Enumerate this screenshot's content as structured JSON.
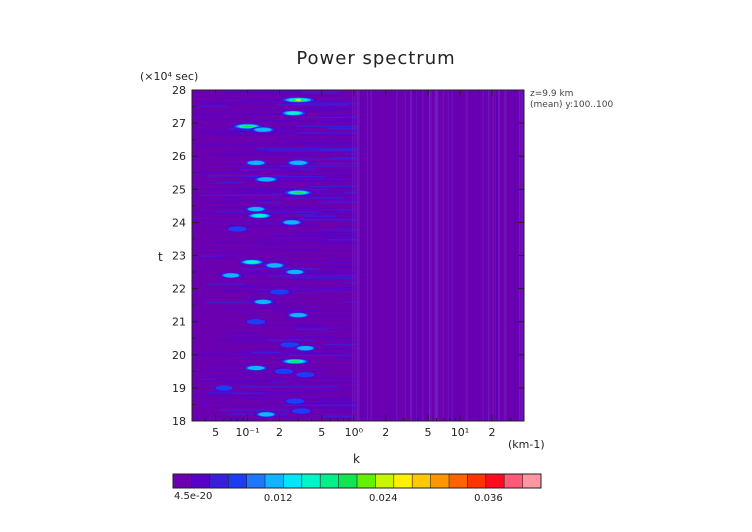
{
  "chart_data": {
    "type": "heatmap",
    "title": "Power spectrum",
    "xlabel": "k",
    "x_unit": "(km-1)",
    "ylabel": "t",
    "y_unit": "(×10⁴ sec)",
    "x_scale": "log",
    "xlim": [
      0.03,
      40
    ],
    "ylim": [
      18,
      28
    ],
    "x_ticks": [
      {
        "value": 0.05,
        "label": "5"
      },
      {
        "value": 0.1,
        "label": "10⁻¹"
      },
      {
        "value": 0.2,
        "label": "2"
      },
      {
        "value": 0.5,
        "label": "5"
      },
      {
        "value": 1,
        "label": "10⁰"
      },
      {
        "value": 2,
        "label": "2"
      },
      {
        "value": 5,
        "label": "5"
      },
      {
        "value": 10,
        "label": "10¹"
      },
      {
        "value": 20,
        "label": "2"
      }
    ],
    "y_ticks": [
      18,
      19,
      20,
      21,
      22,
      23,
      24,
      25,
      26,
      27,
      28
    ],
    "annotations": [
      "z=9.9 km",
      "(mean) y:100..100"
    ],
    "colorbar": {
      "min_label": "4.5e-20",
      "ticks": [
        {
          "value": 0.012,
          "label": "0.012"
        },
        {
          "value": 0.024,
          "label": "0.024"
        },
        {
          "value": 0.036,
          "label": "0.036"
        }
      ],
      "range": [
        0,
        0.042
      ],
      "colors": [
        "#6a00b0",
        "#5800c8",
        "#3a1ee0",
        "#1f3cf5",
        "#1e78ff",
        "#12b4ff",
        "#00e6ff",
        "#00f5c8",
        "#00f08c",
        "#10e650",
        "#64f000",
        "#c8f500",
        "#fff000",
        "#ffc800",
        "#ff9600",
        "#ff6400",
        "#ff3200",
        "#ff0a1e",
        "#ff5a78",
        "#ff96a0"
      ]
    },
    "hotspots": [
      {
        "k": 0.1,
        "t": 26.9,
        "v": 0.022
      },
      {
        "k": 0.3,
        "t": 27.7,
        "v": 0.026
      },
      {
        "k": 0.27,
        "t": 27.3,
        "v": 0.016
      },
      {
        "k": 0.14,
        "t": 26.8,
        "v": 0.014
      },
      {
        "k": 0.12,
        "t": 25.8,
        "v": 0.013
      },
      {
        "k": 0.3,
        "t": 25.8,
        "v": 0.014
      },
      {
        "k": 0.15,
        "t": 25.3,
        "v": 0.015
      },
      {
        "k": 0.3,
        "t": 24.9,
        "v": 0.02
      },
      {
        "k": 0.12,
        "t": 24.4,
        "v": 0.012
      },
      {
        "k": 0.13,
        "t": 24.2,
        "v": 0.016
      },
      {
        "k": 0.26,
        "t": 24.0,
        "v": 0.012
      },
      {
        "k": 0.08,
        "t": 23.8,
        "v": 0.01
      },
      {
        "k": 0.11,
        "t": 22.8,
        "v": 0.016
      },
      {
        "k": 0.18,
        "t": 22.7,
        "v": 0.012
      },
      {
        "k": 0.28,
        "t": 22.5,
        "v": 0.012
      },
      {
        "k": 0.07,
        "t": 22.4,
        "v": 0.012
      },
      {
        "k": 0.2,
        "t": 21.9,
        "v": 0.011
      },
      {
        "k": 0.14,
        "t": 21.6,
        "v": 0.012
      },
      {
        "k": 0.3,
        "t": 21.2,
        "v": 0.013
      },
      {
        "k": 0.12,
        "t": 21.0,
        "v": 0.01
      },
      {
        "k": 0.25,
        "t": 20.3,
        "v": 0.011
      },
      {
        "k": 0.35,
        "t": 20.2,
        "v": 0.012
      },
      {
        "k": 0.28,
        "t": 19.8,
        "v": 0.02
      },
      {
        "k": 0.12,
        "t": 19.6,
        "v": 0.014
      },
      {
        "k": 0.22,
        "t": 19.5,
        "v": 0.01
      },
      {
        "k": 0.35,
        "t": 19.4,
        "v": 0.01
      },
      {
        "k": 0.06,
        "t": 19.0,
        "v": 0.009
      },
      {
        "k": 0.28,
        "t": 18.6,
        "v": 0.01
      },
      {
        "k": 0.15,
        "t": 18.2,
        "v": 0.012
      },
      {
        "k": 0.32,
        "t": 18.3,
        "v": 0.01
      }
    ]
  }
}
